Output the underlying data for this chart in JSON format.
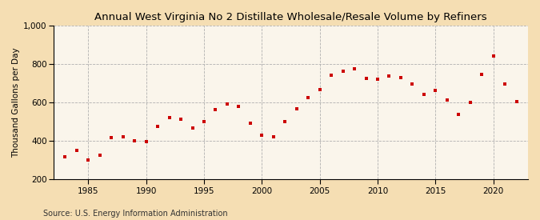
{
  "title": "Annual West Virginia No 2 Distillate Wholesale/Resale Volume by Refiners",
  "ylabel": "Thousand Gallons per Day",
  "source": "Source: U.S. Energy Information Administration",
  "background_color": "#f5deb3",
  "plot_bg_color": "#faf5eb",
  "marker_color": "#cc0000",
  "marker": "s",
  "marker_size": 3.5,
  "xlim": [
    1982,
    2023
  ],
  "ylim": [
    200,
    1000
  ],
  "yticks": [
    200,
    400,
    600,
    800,
    1000
  ],
  "xticks": [
    1985,
    1990,
    1995,
    2000,
    2005,
    2010,
    2015,
    2020
  ],
  "years": [
    1983,
    1984,
    1985,
    1986,
    1987,
    1988,
    1989,
    1990,
    1991,
    1992,
    1993,
    1994,
    1995,
    1996,
    1997,
    1998,
    1999,
    2000,
    2001,
    2002,
    2003,
    2004,
    2005,
    2006,
    2007,
    2008,
    2009,
    2010,
    2011,
    2012,
    2013,
    2014,
    2015,
    2016,
    2017,
    2018,
    2019,
    2020,
    2021,
    2022
  ],
  "values": [
    315,
    350,
    300,
    325,
    415,
    420,
    400,
    395,
    475,
    520,
    510,
    465,
    500,
    560,
    590,
    580,
    490,
    430,
    420,
    500,
    565,
    625,
    665,
    740,
    760,
    775,
    725,
    720,
    735,
    730,
    695,
    640,
    660,
    610,
    535,
    600,
    745,
    840,
    695,
    605
  ],
  "title_fontsize": 9.5,
  "ylabel_fontsize": 7.5,
  "tick_fontsize": 7.5,
  "source_fontsize": 7
}
